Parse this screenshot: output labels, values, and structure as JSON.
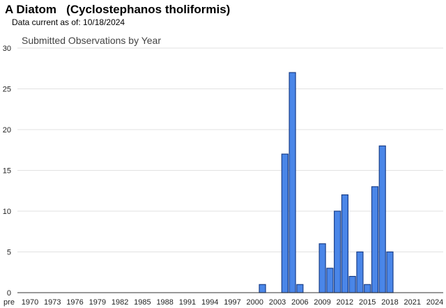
{
  "header": {
    "species_title": "A Diatom   (Cyclostephanos tholiformis)",
    "data_current": "Data current as of: 10/18/2024"
  },
  "chart_data": {
    "type": "bar",
    "title": "Submitted Observations by Year",
    "xlabel": "",
    "ylabel": "",
    "ylim": [
      0,
      30
    ],
    "y_ticks": [
      0,
      5,
      10,
      15,
      20,
      25,
      30
    ],
    "grid": "horizontal",
    "bar_color": "#4a86e8",
    "bar_edge_color": "#1a3f8a",
    "x_tick_labels": [
      "pre",
      "1970",
      "1973",
      "1976",
      "1979",
      "1982",
      "1985",
      "1988",
      "1991",
      "1994",
      "1997",
      "2000",
      "2003",
      "2006",
      "2009",
      "2012",
      "2015",
      "2018",
      "2021",
      "2024"
    ],
    "categories": [
      "pre",
      "1970",
      "1971",
      "1972",
      "1973",
      "1974",
      "1975",
      "1976",
      "1977",
      "1978",
      "1979",
      "1980",
      "1981",
      "1982",
      "1983",
      "1984",
      "1985",
      "1986",
      "1987",
      "1988",
      "1989",
      "1990",
      "1991",
      "1992",
      "1993",
      "1994",
      "1995",
      "1996",
      "1997",
      "1998",
      "1999",
      "2000",
      "2001",
      "2002",
      "2003",
      "2004",
      "2005",
      "2006",
      "2007",
      "2008",
      "2009",
      "2010",
      "2011",
      "2012",
      "2013",
      "2014",
      "2015",
      "2016",
      "2017",
      "2018",
      "2019",
      "2020",
      "2021",
      "2022",
      "2023",
      "2024"
    ],
    "values": [
      0,
      0,
      0,
      0,
      0,
      0,
      0,
      0,
      0,
      0,
      0,
      0,
      0,
      0,
      0,
      0,
      0,
      0,
      0,
      0,
      0,
      0,
      0,
      0,
      0,
      0,
      0,
      0,
      0,
      0,
      0,
      0,
      1,
      0,
      0,
      17,
      27,
      1,
      0,
      0,
      6,
      3,
      10,
      12,
      2,
      5,
      1,
      13,
      18,
      5,
      0,
      0,
      0,
      0,
      0,
      0
    ]
  }
}
